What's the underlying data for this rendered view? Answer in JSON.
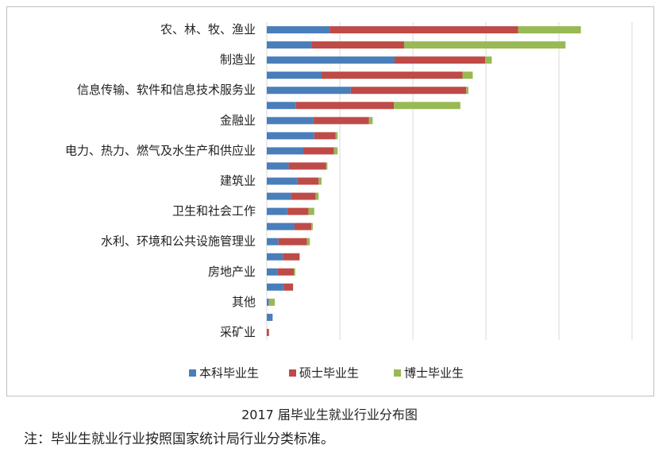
{
  "chart_data": {
    "type": "stacked-barh",
    "title": "2017 届毕业生就业行业分布图",
    "note": "注：毕业生就业行业按照国家统计局行业分类标准。",
    "categories": [
      "农、林、牧、渔业",
      null,
      "制造业",
      null,
      "信息传输、软件和信息技术服务业",
      null,
      "金融业",
      null,
      "电力、热力、燃气及水生产和供应业",
      null,
      "建筑业",
      null,
      "卫生和社会工作",
      null,
      "水利、环境和公共设施管理业",
      null,
      "房地产业",
      null,
      "其他",
      null,
      "采矿业"
    ],
    "series": [
      {
        "name": "本科毕业生",
        "color": "#4a7ebb",
        "values": [
          0.86,
          0.61,
          1.75,
          0.75,
          1.15,
          0.4,
          0.64,
          0.65,
          0.5,
          0.3,
          0.42,
          0.33,
          0.28,
          0.38,
          0.16,
          0.22,
          0.15,
          0.23,
          0.03,
          0.08,
          0
        ]
      },
      {
        "name": "硕士毕业生",
        "color": "#be4b48",
        "values": [
          2.58,
          1.27,
          1.24,
          1.93,
          1.58,
          1.34,
          0.76,
          0.29,
          0.42,
          0.51,
          0.29,
          0.34,
          0.29,
          0.23,
          0.39,
          0.23,
          0.22,
          0.13,
          0,
          0,
          0.03
        ]
      },
      {
        "name": "博士毕业生",
        "color": "#98b954",
        "values": [
          0.86,
          2.21,
          0.09,
          0.14,
          0.03,
          0.91,
          0.05,
          0.03,
          0.05,
          0.02,
          0.04,
          0.04,
          0.08,
          0.02,
          0.04,
          0,
          0.02,
          0,
          0.08,
          0,
          0
        ]
      }
    ],
    "xlim": [
      0,
      5
    ],
    "xticks": [
      0,
      1,
      2,
      3,
      4,
      5
    ],
    "grid": true,
    "legend": "bottom"
  }
}
